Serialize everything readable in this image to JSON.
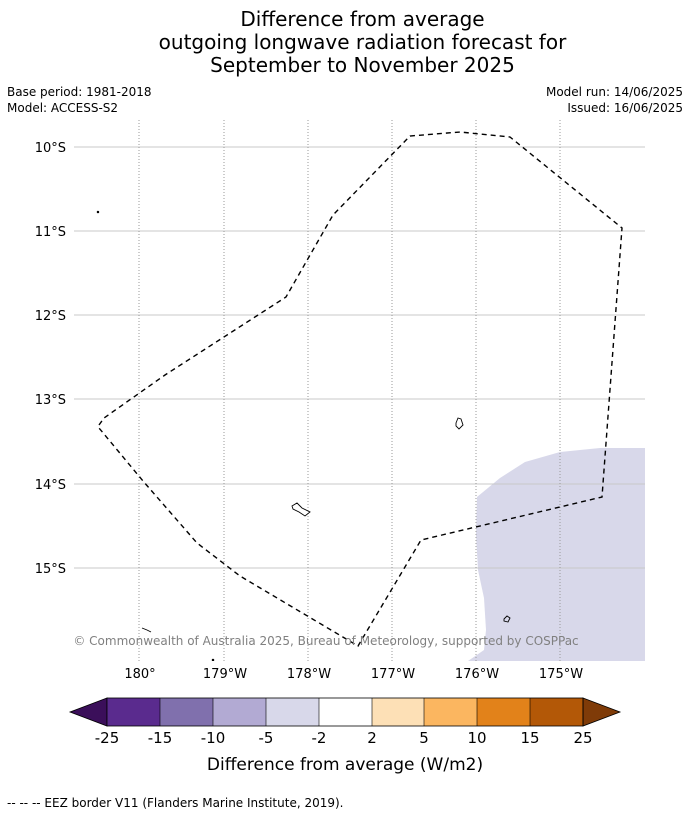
{
  "title": {
    "line1": "Difference from average",
    "line2": "outgoing longwave radiation forecast for",
    "line3": "September to November 2025"
  },
  "meta": {
    "base_period": "Base period: 1981-2018",
    "model": "Model: ACCESS-S2",
    "model_run": "Model run: 14/06/2025",
    "issued": "Issued: 16/06/2025"
  },
  "map": {
    "lat_labels": [
      "10°S",
      "11°S",
      "12°S",
      "13°S",
      "14°S",
      "15°S"
    ],
    "lon_labels": [
      "180°",
      "179°W",
      "178°W",
      "177°W",
      "176°W",
      "175°W"
    ],
    "anomaly_fill_color": "#d8d8ea",
    "copyright": "© Commonwealth of Australia 2025, Bureau of Meteorology, supported by COSPPac"
  },
  "colorbar": {
    "label": "Difference from average (W/m2)",
    "ticks": [
      "-25",
      "-15",
      "-10",
      "-5",
      "-2",
      "2",
      "5",
      "10",
      "15",
      "25"
    ],
    "colors": [
      "#3b0f5a",
      "#5a2b8e",
      "#8070ad",
      "#b2aad3",
      "#d8d8ea",
      "#ffffff",
      "#fde0b6",
      "#fbb660",
      "#e2821a",
      "#b35807",
      "#7f3b08"
    ]
  },
  "footnote": "-- -- -- EEZ border V11 (Flanders Marine Institute, 2019)."
}
